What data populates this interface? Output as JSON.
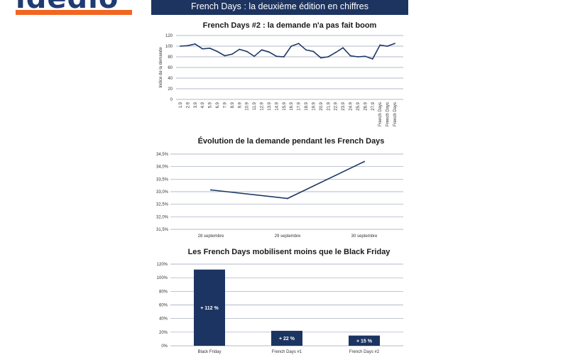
{
  "header": {
    "logo_text": "ldedlo",
    "banner_title": "French Days : la deuxième édition en chiffres"
  },
  "colors": {
    "brand_navy": "#1d3461",
    "brand_orange": "#f26522",
    "series": "#1f3864"
  },
  "chart_data": [
    {
      "type": "line",
      "title": "French Days #2 : la demande n'a pas fait boom",
      "ylabel": "Indice de la demande",
      "ylim": [
        0,
        120
      ],
      "yticks": [
        0,
        20,
        40,
        60,
        80,
        100,
        120
      ],
      "categories": [
        "1.9",
        "2.9",
        "3.9",
        "4.9",
        "5.9",
        "6.9",
        "7.9",
        "8.9",
        "9.9",
        "10.9",
        "11.9",
        "12.9",
        "13.9",
        "14.9",
        "15.9",
        "16.9",
        "17.9",
        "18.9",
        "19.9",
        "20.9",
        "21.9",
        "22.9",
        "23.9",
        "24.9",
        "25.9",
        "26.9",
        "27.9",
        "French Days",
        "French Days",
        "French Days"
      ],
      "values": [
        100,
        101,
        104,
        95,
        96,
        90,
        82,
        85,
        94,
        90,
        81,
        93,
        89,
        81,
        80,
        100,
        105,
        93,
        90,
        78,
        80,
        88,
        97,
        82,
        80,
        81,
        76,
        102,
        100,
        105
      ],
      "grid": true
    },
    {
      "type": "line",
      "title": "Évolution de la demande pendant les French Days",
      "categories": [
        "28 septembre",
        "29 septembre",
        "30 septembre"
      ],
      "values": [
        33.07,
        32.73,
        34.2
      ],
      "ylim": [
        31.5,
        34.5
      ],
      "ytick_labels": [
        "31,5%",
        "32,0%",
        "32,5%",
        "33,0%",
        "33,5%",
        "34,0%",
        "34,5%"
      ],
      "yticks": [
        31.5,
        32.0,
        32.5,
        33.0,
        33.5,
        34.0,
        34.5
      ],
      "grid": true
    },
    {
      "type": "bar",
      "title": "Les French Days mobilisent moins que le Black Friday",
      "categories": [
        "Black Friday",
        "French Days #1",
        "French Days #2"
      ],
      "values": [
        112,
        22,
        15
      ],
      "labels": [
        "+ 112 %",
        "+ 22 %",
        "+ 15 %"
      ],
      "ylim": [
        0,
        120
      ],
      "yticks": [
        0,
        20,
        40,
        60,
        80,
        100,
        120
      ],
      "ytick_labels": [
        "0%",
        "20%",
        "40%",
        "60%",
        "80%",
        "100%",
        "120%"
      ],
      "grid": true
    }
  ]
}
